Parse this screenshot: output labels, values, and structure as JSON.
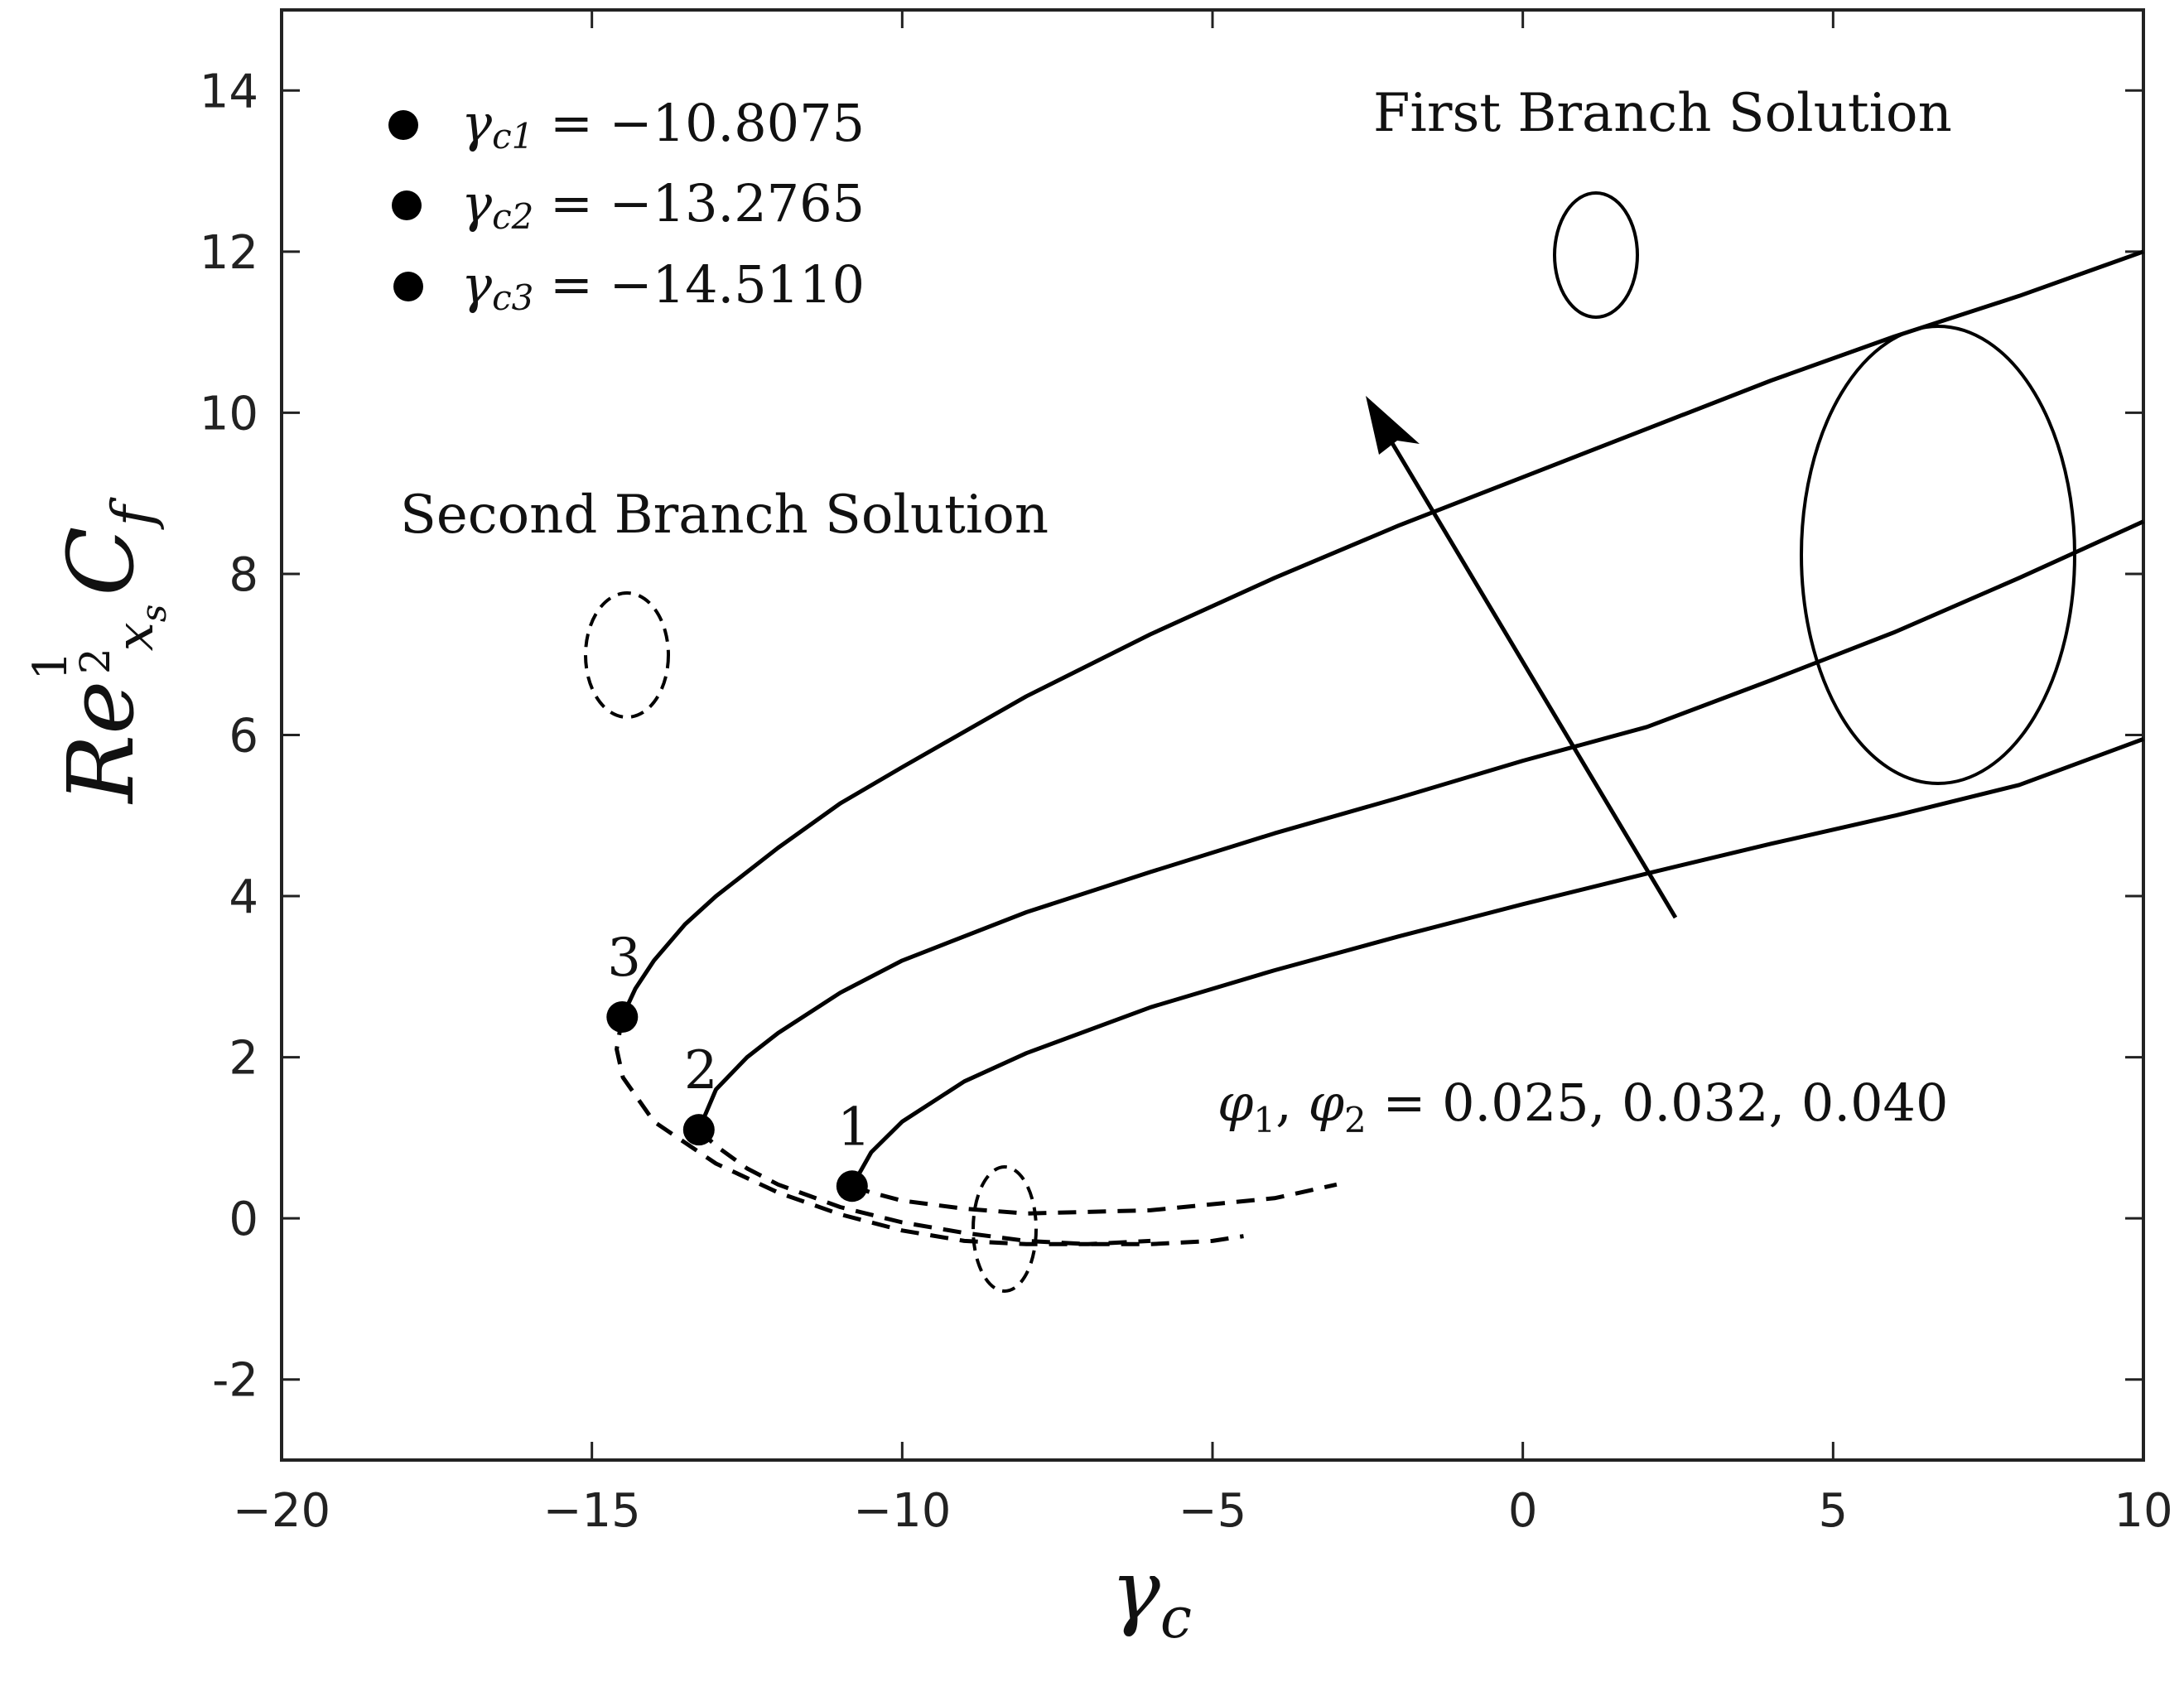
{
  "chart_data": {
    "type": "line",
    "title": "",
    "xlim": [
      -20,
      10
    ],
    "ylim": [
      -3,
      15
    ],
    "x_ticks": [
      -20,
      -15,
      -10,
      -5,
      0,
      5,
      10
    ],
    "x_tick_labels": [
      "−20",
      "−15",
      "−10",
      "−5",
      "0",
      "5",
      "10"
    ],
    "y_ticks": [
      -2,
      0,
      2,
      4,
      6,
      8,
      10,
      12,
      14
    ],
    "y_tick_labels": [
      "-2",
      "0",
      "2",
      "4",
      "6",
      "8",
      "10",
      "12",
      "14"
    ],
    "grid": false,
    "xlabel": {
      "main": "γ",
      "sub": "c"
    },
    "ylabel": {
      "base": "Re",
      "sup": "1",
      "den": "2",
      "sub": "x",
      "subsub": "s",
      "tail": "C",
      "tail_sub": "f"
    },
    "series": [
      {
        "label": "1",
        "critical": {
          "x": -10.8075,
          "y": 0.4
        },
        "first_branch": {
          "x": [
            -10.8075,
            -10.5,
            -10,
            -9,
            -8,
            -6,
            -4,
            -2,
            0,
            2,
            4,
            6,
            8,
            10
          ],
          "y": [
            0.4,
            0.82,
            1.2,
            1.7,
            2.05,
            2.62,
            3.08,
            3.5,
            3.9,
            4.28,
            4.65,
            5.0,
            5.38,
            5.95
          ]
        },
        "second_branch": {
          "x": [
            -10.8075,
            -10.5,
            -10,
            -9,
            -8,
            -6,
            -4,
            -3
          ],
          "y": [
            0.4,
            0.32,
            0.22,
            0.12,
            0.06,
            0.1,
            0.25,
            0.42
          ]
        }
      },
      {
        "label": "2",
        "critical": {
          "x": -13.2765,
          "y": 1.1
        },
        "first_branch": {
          "x": [
            -13.2765,
            -13,
            -12.5,
            -12,
            -11,
            -10,
            -8,
            -6,
            -4,
            -2,
            0,
            2,
            4,
            6,
            8,
            10
          ],
          "y": [
            1.1,
            1.6,
            2.0,
            2.3,
            2.8,
            3.2,
            3.8,
            4.3,
            4.78,
            5.22,
            5.68,
            6.1,
            6.68,
            7.28,
            7.95,
            8.65
          ]
        },
        "second_branch": {
          "x": [
            -13.2765,
            -13,
            -12.5,
            -12,
            -11,
            -10,
            -9,
            -8,
            -7,
            -6,
            -5,
            -4.5
          ],
          "y": [
            1.1,
            0.9,
            0.62,
            0.42,
            0.14,
            -0.05,
            -0.18,
            -0.28,
            -0.32,
            -0.32,
            -0.28,
            -0.22
          ]
        }
      },
      {
        "label": "3",
        "critical": {
          "x": -14.511,
          "y": 2.5
        },
        "first_branch": {
          "x": [
            -14.511,
            -14.3,
            -14,
            -13.5,
            -13,
            -12,
            -11,
            -10,
            -8,
            -6,
            -4,
            -2,
            0,
            2,
            4,
            6,
            8,
            10
          ],
          "y": [
            2.5,
            2.85,
            3.2,
            3.65,
            4.0,
            4.6,
            5.15,
            5.6,
            6.48,
            7.25,
            7.95,
            8.6,
            9.2,
            9.8,
            10.4,
            10.95,
            11.45,
            12.0
          ]
        },
        "second_branch": {
          "x": [
            -14.511,
            -14.6,
            -14.5,
            -14,
            -13,
            -12,
            -11,
            -10,
            -9,
            -8,
            -7,
            -6
          ],
          "y": [
            2.5,
            2.1,
            1.75,
            1.2,
            0.68,
            0.32,
            0.05,
            -0.15,
            -0.28,
            -0.32,
            -0.32,
            -0.28
          ]
        }
      }
    ],
    "legend_entries": [
      {
        "symbol": "γ",
        "sub": "c1",
        "value": " = −10.8075"
      },
      {
        "symbol": "γ",
        "sub": "c2",
        "value": " = −13.2765"
      },
      {
        "symbol": "γ",
        "sub": "c3",
        "value": " = −14.5110"
      }
    ],
    "legend_placement": "top-left",
    "annotations": {
      "first_branch": "First Branch Solution",
      "second_branch": "Second Branch Solution",
      "phi": {
        "p1": "φ",
        "s1": "1",
        "sep": ", ",
        "p2": "φ",
        "s2": "2",
        "values": " = 0.025, 0.032, 0.040"
      }
    },
    "line_color": "#000000"
  }
}
